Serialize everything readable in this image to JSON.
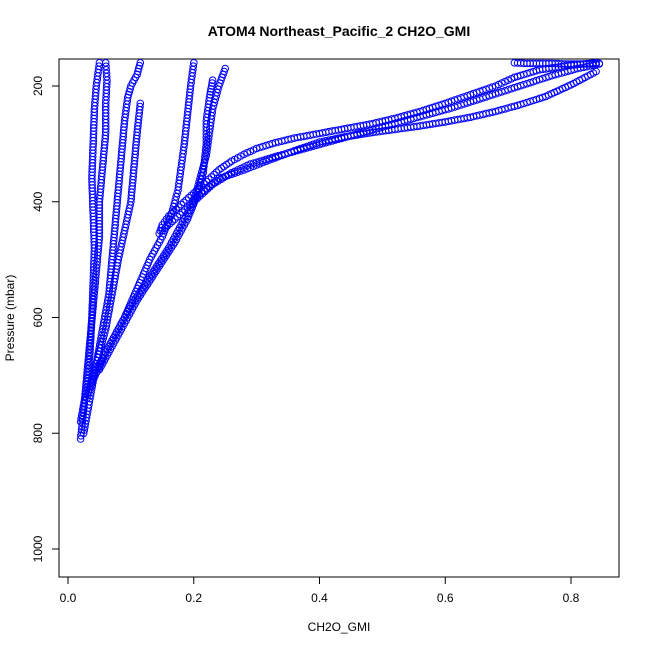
{
  "chart_data": {
    "type": "scatter",
    "title": "ATOM4 Northeast_Pacific_2 CH2O_GMI",
    "xlabel": "CH2O_GMI",
    "ylabel": "Pressure (mbar)",
    "xlim": [
      0.0,
      0.87
    ],
    "ylim": [
      1045,
      155
    ],
    "y_reversed": true,
    "x_ticks": [
      0.0,
      0.2,
      0.4,
      0.6,
      0.8
    ],
    "x_tick_labels": [
      "0.0",
      "0.2",
      "0.4",
      "0.6",
      "0.8"
    ],
    "y_ticks": [
      200,
      400,
      600,
      800,
      1000
    ],
    "y_tick_labels": [
      "200",
      "400",
      "600",
      "800",
      "1000"
    ],
    "grid": false,
    "legend": "none",
    "marker": "open-circle",
    "color": "#0000ff",
    "series": [
      {
        "x": [
          0.02,
          0.025,
          0.03,
          0.035,
          0.04,
          0.045,
          0.05,
          0.05,
          0.055,
          0.06,
          0.06,
          0.062,
          0.06
        ],
        "y": [
          810,
          760,
          700,
          640,
          580,
          520,
          460,
          400,
          340,
          280,
          230,
          190,
          160
        ]
      },
      {
        "x": [
          0.02,
          0.03,
          0.035,
          0.038,
          0.04,
          0.042,
          0.04,
          0.038,
          0.04,
          0.042,
          0.045,
          0.05
        ],
        "y": [
          780,
          720,
          660,
          600,
          540,
          480,
          420,
          360,
          300,
          240,
          200,
          160
        ]
      },
      {
        "x": [
          0.025,
          0.035,
          0.045,
          0.055,
          0.065,
          0.07,
          0.075,
          0.08,
          0.085,
          0.09,
          0.095,
          0.1,
          0.11,
          0.115
        ],
        "y": [
          800,
          740,
          680,
          620,
          560,
          500,
          440,
          380,
          320,
          260,
          220,
          200,
          180,
          160
        ]
      },
      {
        "x": [
          0.03,
          0.045,
          0.06,
          0.07,
          0.08,
          0.09,
          0.1,
          0.105,
          0.11,
          0.115
        ],
        "y": [
          740,
          680,
          620,
          560,
          500,
          450,
          400,
          340,
          280,
          230
        ]
      },
      {
        "x": [
          0.035,
          0.06,
          0.09,
          0.11,
          0.13,
          0.15,
          0.165,
          0.175,
          0.18,
          0.185,
          0.19,
          0.195,
          0.2
        ],
        "y": [
          720,
          660,
          600,
          550,
          500,
          460,
          420,
          380,
          340,
          300,
          250,
          200,
          160
        ]
      },
      {
        "x": [
          0.04,
          0.07,
          0.1,
          0.13,
          0.16,
          0.18,
          0.2,
          0.21,
          0.22,
          0.225,
          0.23,
          0.24,
          0.25
        ],
        "y": [
          700,
          640,
          580,
          530,
          480,
          440,
          400,
          360,
          320,
          280,
          240,
          200,
          170
        ]
      },
      {
        "x": [
          0.05,
          0.08,
          0.11,
          0.14,
          0.17,
          0.19,
          0.205,
          0.215,
          0.22,
          0.22,
          0.225,
          0.23
        ],
        "y": [
          690,
          630,
          570,
          520,
          470,
          430,
          390,
          350,
          300,
          260,
          220,
          190
        ]
      },
      {
        "x": [
          0.145,
          0.15,
          0.16,
          0.18,
          0.2,
          0.22,
          0.24,
          0.26,
          0.28,
          0.3,
          0.33,
          0.36,
          0.4,
          0.44,
          0.48,
          0.52,
          0.56,
          0.6,
          0.64,
          0.68,
          0.71,
          0.75,
          0.8,
          0.84
        ],
        "y": [
          455,
          440,
          425,
          405,
          385,
          365,
          345,
          330,
          318,
          308,
          298,
          290,
          282,
          274,
          266,
          256,
          244,
          230,
          215,
          200,
          185,
          172,
          164,
          160
        ]
      },
      {
        "x": [
          0.15,
          0.17,
          0.19,
          0.21,
          0.23,
          0.26,
          0.29,
          0.33,
          0.37,
          0.41,
          0.45,
          0.49,
          0.53,
          0.57,
          0.61,
          0.65,
          0.69,
          0.73,
          0.77,
          0.81,
          0.845
        ],
        "y": [
          450,
          430,
          410,
          390,
          370,
          350,
          335,
          322,
          310,
          298,
          286,
          274,
          262,
          250,
          238,
          224,
          210,
          196,
          182,
          170,
          162
        ]
      },
      {
        "x": [
          0.2,
          0.24,
          0.28,
          0.32,
          0.36,
          0.4,
          0.44,
          0.48,
          0.52,
          0.56,
          0.6,
          0.64,
          0.68,
          0.72,
          0.76,
          0.8,
          0.84
        ],
        "y": [
          395,
          360,
          345,
          328,
          312,
          297,
          288,
          281,
          275,
          269,
          262,
          254,
          244,
          232,
          218,
          198,
          175
        ]
      },
      {
        "x": [
          0.71,
          0.73,
          0.75,
          0.77,
          0.79,
          0.81,
          0.83,
          0.845
        ],
        "y": [
          160,
          161,
          161,
          161,
          162,
          162,
          162,
          161
        ]
      }
    ]
  }
}
